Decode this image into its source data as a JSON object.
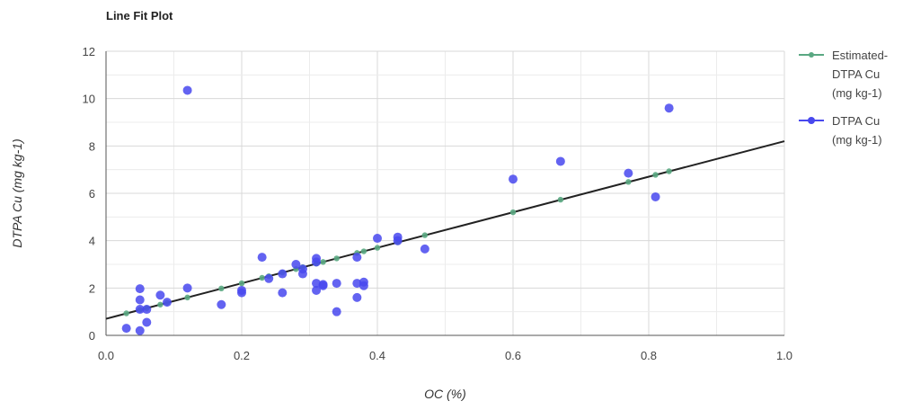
{
  "chart_data": {
    "type": "scatter",
    "title": "Line Fit Plot",
    "xlabel": "OC (%)",
    "ylabel": "DTPA Cu (mg kg-1)",
    "xlim": [
      0.0,
      1.0
    ],
    "ylim": [
      0,
      12
    ],
    "x_ticks": [
      "0.0",
      "0.2",
      "0.4",
      "0.6",
      "0.8",
      "1.0"
    ],
    "y_ticks": [
      "0",
      "2",
      "4",
      "6",
      "8",
      "10",
      "12"
    ],
    "grid": true,
    "legend_position": "right",
    "trendline": {
      "intercept": 0.7,
      "slope": 7.5,
      "color": "#222222"
    },
    "series": [
      {
        "name": "Estimated-DTPA Cu (mg kg-1)",
        "legend_lines": [
          "Estimated-",
          "DTPA Cu",
          "(mg kg-1)"
        ],
        "color": "#5aa882",
        "marker": "small-dot",
        "x": [
          0.03,
          0.05,
          0.06,
          0.08,
          0.09,
          0.12,
          0.17,
          0.2,
          0.23,
          0.24,
          0.26,
          0.28,
          0.29,
          0.31,
          0.32,
          0.34,
          0.37,
          0.38,
          0.4,
          0.43,
          0.47,
          0.6,
          0.67,
          0.77,
          0.81,
          0.83
        ],
        "y": [
          0.93,
          1.08,
          1.15,
          1.3,
          1.38,
          1.6,
          1.98,
          2.2,
          2.43,
          2.5,
          2.65,
          2.8,
          2.88,
          3.03,
          3.1,
          3.25,
          3.48,
          3.55,
          3.7,
          3.93,
          4.23,
          5.2,
          5.73,
          6.48,
          6.78,
          6.93
        ]
      },
      {
        "name": "DTPA Cu (mg kg-1)",
        "legend_lines": [
          "DTPA Cu",
          "(mg kg-1)"
        ],
        "color": "#4848ee",
        "marker": "dot",
        "x": [
          0.03,
          0.05,
          0.05,
          0.05,
          0.05,
          0.06,
          0.06,
          0.08,
          0.09,
          0.12,
          0.12,
          0.17,
          0.2,
          0.2,
          0.23,
          0.24,
          0.26,
          0.26,
          0.28,
          0.29,
          0.29,
          0.31,
          0.31,
          0.31,
          0.31,
          0.32,
          0.32,
          0.34,
          0.34,
          0.37,
          0.37,
          0.37,
          0.38,
          0.38,
          0.4,
          0.43,
          0.43,
          0.47,
          0.6,
          0.67,
          0.77,
          0.81,
          0.83
        ],
        "y": [
          0.3,
          0.2,
          1.1,
          1.5,
          1.97,
          0.55,
          1.1,
          1.7,
          1.4,
          2.0,
          10.35,
          1.3,
          1.8,
          1.9,
          3.3,
          2.4,
          1.8,
          2.6,
          3.0,
          2.6,
          2.8,
          1.9,
          2.2,
          3.1,
          3.25,
          2.1,
          2.15,
          1.0,
          2.2,
          1.6,
          2.2,
          3.3,
          2.1,
          2.25,
          4.1,
          4.0,
          4.15,
          3.65,
          6.6,
          7.35,
          6.85,
          5.85,
          9.6
        ]
      }
    ]
  }
}
